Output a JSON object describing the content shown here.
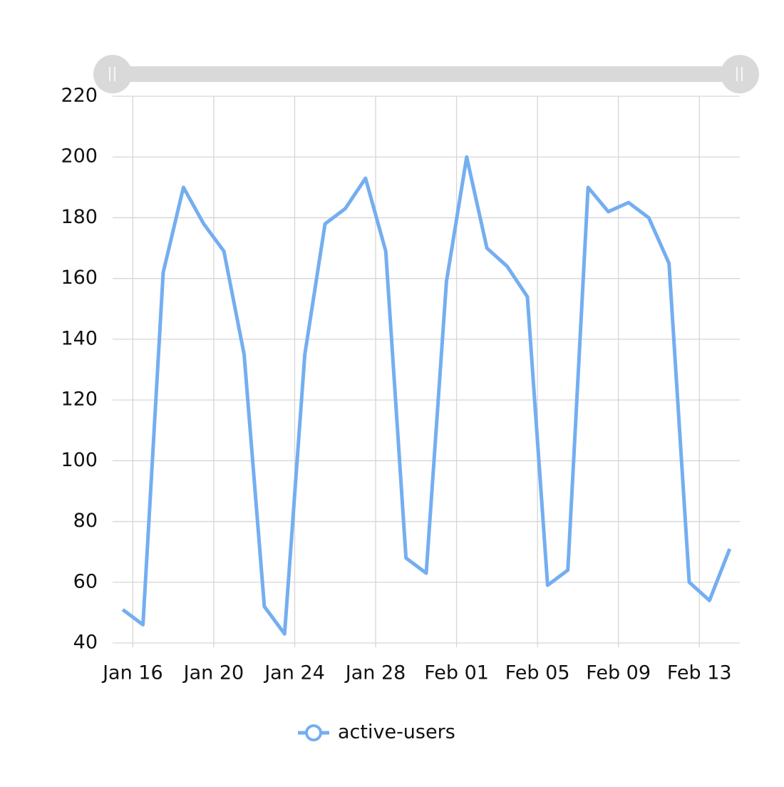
{
  "chart_data": {
    "type": "line",
    "x": [
      "Jan 15",
      "Jan 16",
      "Jan 17",
      "Jan 18",
      "Jan 19",
      "Jan 20",
      "Jan 21",
      "Jan 22",
      "Jan 23",
      "Jan 24",
      "Jan 25",
      "Jan 26",
      "Jan 27",
      "Jan 28",
      "Jan 29",
      "Jan 30",
      "Jan 31",
      "Feb 01",
      "Feb 02",
      "Feb 03",
      "Feb 04",
      "Feb 05",
      "Feb 06",
      "Feb 07",
      "Feb 08",
      "Feb 09",
      "Feb 10",
      "Feb 11",
      "Feb 12",
      "Feb 13",
      "Feb 14"
    ],
    "series": [
      {
        "name": "active-users",
        "color": "#74aef0",
        "values": [
          51,
          46,
          162,
          190,
          178,
          169,
          135,
          52,
          43,
          135,
          178,
          183,
          193,
          169,
          68,
          63,
          159,
          200,
          170,
          164,
          154,
          59,
          64,
          190,
          182,
          185,
          180,
          165,
          60,
          54,
          71
        ]
      }
    ],
    "xticks": [
      "Jan 16",
      "Jan 20",
      "Jan 24",
      "Jan 28",
      "Feb 01",
      "Feb 05",
      "Feb 09",
      "Feb 13"
    ],
    "ylim": [
      40,
      220
    ],
    "yticks": [
      40,
      60,
      80,
      100,
      120,
      140,
      160,
      180,
      200,
      220
    ],
    "grid": true,
    "legend": "bottom"
  }
}
